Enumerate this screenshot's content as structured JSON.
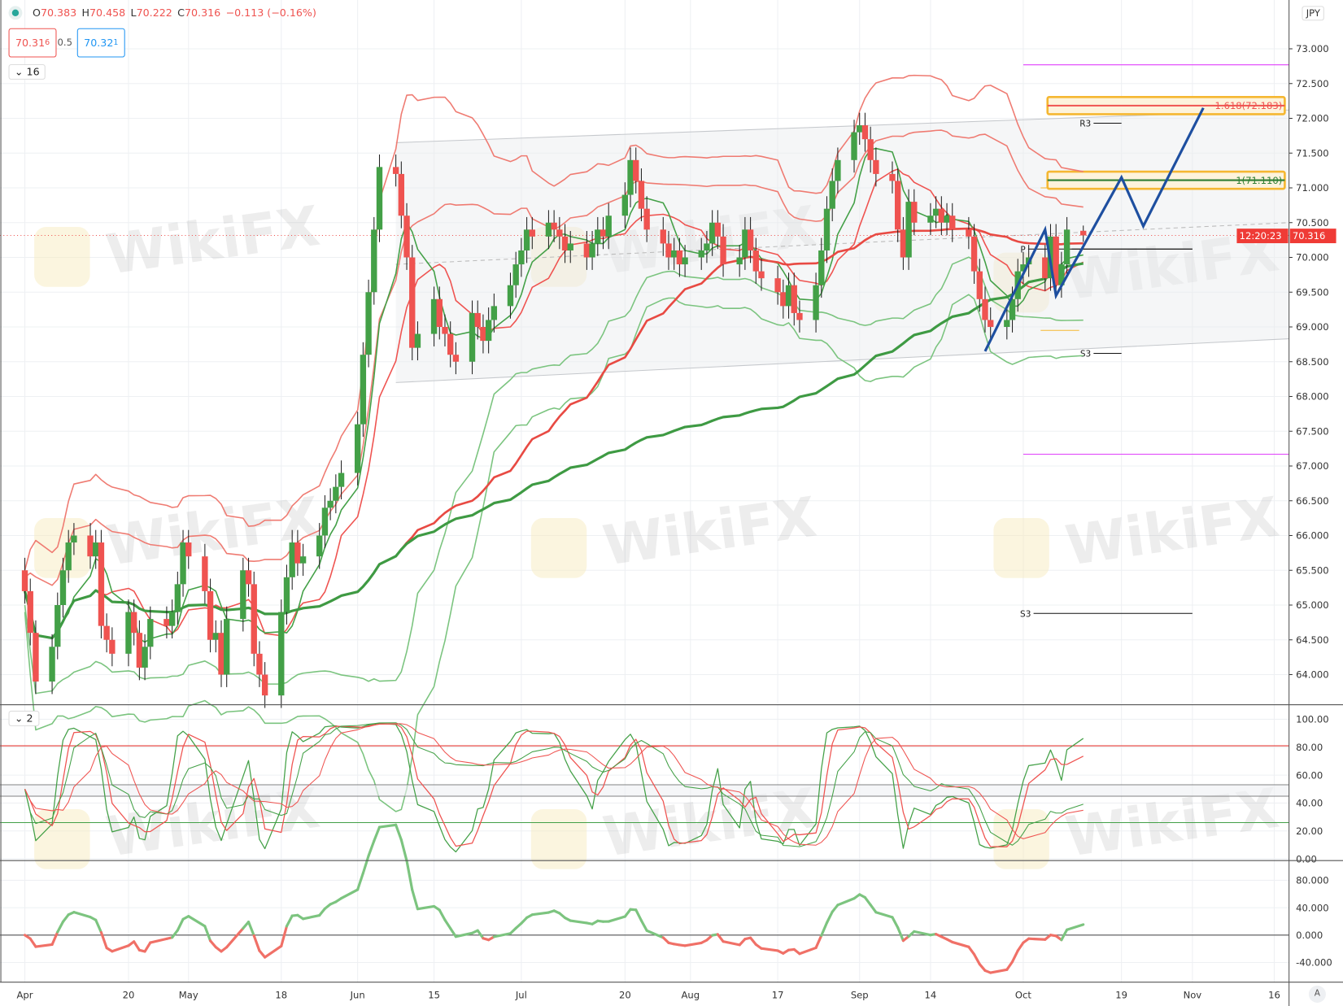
{
  "legend": {
    "open_label": "O",
    "open": "70.383",
    "high_label": "H",
    "high": "70.458",
    "low_label": "L",
    "low": "70.222",
    "close_label": "C",
    "close": "70.316",
    "change": "−0.113 (−0.16%)"
  },
  "bid": {
    "value": "70.31",
    "sup": "6"
  },
  "spread": "0.5",
  "ask": {
    "value": "70.32",
    "sup": "1"
  },
  "pane_chips": {
    "main": "16",
    "osc": "2"
  },
  "currency": "JPY",
  "price_label": "70.316",
  "countdown": "12:20:23",
  "axis_mode": "A",
  "watermark": "WikiFX",
  "colors": {
    "up": "#43a047",
    "down": "#ef5350",
    "projection": "#1e4fa0",
    "fib_box": "#f5b731",
    "pivot_magenta": "#e040fb"
  },
  "chart_data": [
    {
      "type": "candlestick",
      "price_ticks": [
        "73.000",
        "72.500",
        "72.000",
        "71.500",
        "71.000",
        "70.500",
        "70.000",
        "69.500",
        "69.000",
        "68.500",
        "68.000",
        "67.500",
        "67.000",
        "66.500",
        "66.000",
        "65.500",
        "65.000",
        "64.500",
        "64.000"
      ],
      "time_ticks": [
        [
          "04-01",
          "Apr"
        ],
        [
          "04-20",
          "20"
        ],
        [
          "05-01",
          "May"
        ],
        [
          "05-18",
          "18"
        ],
        [
          "06-01",
          "Jun"
        ],
        [
          "06-15",
          "15"
        ],
        [
          "07-01",
          "Jul"
        ],
        [
          "07-20",
          "20"
        ],
        [
          "08-01",
          "Aug"
        ],
        [
          "08-17",
          "17"
        ],
        [
          "09-01",
          "Sep"
        ],
        [
          "09-14",
          "14"
        ],
        [
          "10-01",
          "Oct"
        ],
        [
          "10-19",
          "19"
        ],
        [
          "11-01",
          "Nov"
        ],
        [
          "11-16",
          "16"
        ]
      ],
      "ylim": [
        63.6,
        73.5
      ],
      "closes": [
        [
          "04-01",
          65.2
        ],
        [
          "04-02",
          64.6
        ],
        [
          "04-03",
          63.9
        ],
        [
          "04-06",
          64.4
        ],
        [
          "04-07",
          65.0
        ],
        [
          "04-08",
          65.5
        ],
        [
          "04-09",
          65.9
        ],
        [
          "04-10",
          66.0
        ],
        [
          "04-13",
          65.7
        ],
        [
          "04-14",
          65.9
        ],
        [
          "04-15",
          64.7
        ],
        [
          "04-16",
          64.5
        ],
        [
          "04-17",
          64.3
        ],
        [
          "04-20",
          64.9
        ],
        [
          "04-21",
          64.6
        ],
        [
          "04-22",
          64.1
        ],
        [
          "04-23",
          64.4
        ],
        [
          "04-24",
          64.8
        ],
        [
          "04-27",
          64.7
        ],
        [
          "04-28",
          64.9
        ],
        [
          "04-29",
          65.3
        ],
        [
          "04-30",
          65.9
        ],
        [
          "05-01",
          65.7
        ],
        [
          "05-04",
          65.2
        ],
        [
          "05-05",
          64.5
        ],
        [
          "05-06",
          64.6
        ],
        [
          "05-07",
          64.0
        ],
        [
          "05-08",
          64.8
        ],
        [
          "05-11",
          65.5
        ],
        [
          "05-12",
          65.3
        ],
        [
          "05-13",
          64.3
        ],
        [
          "05-14",
          64.0
        ],
        [
          "05-15",
          63.7
        ],
        [
          "05-18",
          64.9
        ],
        [
          "05-19",
          65.4
        ],
        [
          "05-20",
          65.9
        ],
        [
          "05-21",
          65.6
        ],
        [
          "05-22",
          65.7
        ],
        [
          "05-25",
          66.0
        ],
        [
          "05-26",
          66.4
        ],
        [
          "05-27",
          66.5
        ],
        [
          "05-28",
          66.7
        ],
        [
          "05-29",
          66.9
        ],
        [
          "06-01",
          67.6
        ],
        [
          "06-02",
          68.6
        ],
        [
          "06-03",
          69.5
        ],
        [
          "06-04",
          70.4
        ],
        [
          "06-05",
          71.3
        ],
        [
          "06-08",
          71.2
        ],
        [
          "06-09",
          70.6
        ],
        [
          "06-10",
          70.0
        ],
        [
          "06-11",
          68.7
        ],
        [
          "06-12",
          68.9
        ],
        [
          "06-15",
          69.4
        ],
        [
          "06-16",
          69.0
        ],
        [
          "06-17",
          68.9
        ],
        [
          "06-18",
          68.6
        ],
        [
          "06-19",
          68.5
        ],
        [
          "06-22",
          69.2
        ],
        [
          "06-23",
          69.0
        ],
        [
          "06-24",
          68.8
        ],
        [
          "06-25",
          69.1
        ],
        [
          "06-26",
          69.3
        ],
        [
          "06-29",
          69.6
        ],
        [
          "06-30",
          69.9
        ],
        [
          "07-01",
          70.1
        ],
        [
          "07-02",
          70.4
        ],
        [
          "07-03",
          70.3
        ],
        [
          "07-06",
          70.5
        ],
        [
          "07-07",
          70.4
        ],
        [
          "07-08",
          70.3
        ],
        [
          "07-09",
          70.1
        ],
        [
          "07-10",
          70.2
        ],
        [
          "07-13",
          70.0
        ],
        [
          "07-14",
          70.2
        ],
        [
          "07-15",
          70.4
        ],
        [
          "07-16",
          70.3
        ],
        [
          "07-17",
          70.6
        ],
        [
          "07-20",
          70.9
        ],
        [
          "07-21",
          71.4
        ],
        [
          "07-22",
          71.1
        ],
        [
          "07-23",
          70.7
        ],
        [
          "07-24",
          70.4
        ],
        [
          "07-27",
          70.2
        ],
        [
          "07-28",
          70.0
        ],
        [
          "07-29",
          70.1
        ],
        [
          "07-30",
          69.9
        ],
        [
          "07-31",
          70.0
        ],
        [
          "08-03",
          70.1
        ],
        [
          "08-04",
          70.2
        ],
        [
          "08-05",
          70.5
        ],
        [
          "08-06",
          70.3
        ],
        [
          "08-07",
          69.9
        ],
        [
          "08-10",
          70.0
        ],
        [
          "08-11",
          70.4
        ],
        [
          "08-12",
          70.1
        ],
        [
          "08-13",
          69.8
        ],
        [
          "08-14",
          69.7
        ],
        [
          "08-17",
          69.5
        ],
        [
          "08-18",
          69.3
        ],
        [
          "08-19",
          69.6
        ],
        [
          "08-20",
          69.2
        ],
        [
          "08-21",
          69.1
        ],
        [
          "08-24",
          69.6
        ],
        [
          "08-25",
          70.1
        ],
        [
          "08-26",
          70.7
        ],
        [
          "08-27",
          71.1
        ],
        [
          "08-28",
          71.4
        ],
        [
          "08-31",
          71.8
        ],
        [
          "09-01",
          71.9
        ],
        [
          "09-02",
          71.7
        ],
        [
          "09-03",
          71.4
        ],
        [
          "09-04",
          71.2
        ],
        [
          "09-07",
          71.1
        ],
        [
          "09-08",
          70.4
        ],
        [
          "09-09",
          70.0
        ],
        [
          "09-10",
          70.8
        ],
        [
          "09-11",
          70.5
        ],
        [
          "09-14",
          70.6
        ],
        [
          "09-15",
          70.7
        ],
        [
          "09-16",
          70.5
        ],
        [
          "09-17",
          70.6
        ],
        [
          "09-18",
          70.4
        ],
        [
          "09-21",
          70.3
        ],
        [
          "09-22",
          69.8
        ],
        [
          "09-23",
          69.4
        ],
        [
          "09-24",
          69.1
        ],
        [
          "09-25",
          69.0
        ],
        [
          "09-28",
          69.1
        ],
        [
          "09-29",
          69.4
        ],
        [
          "09-30",
          69.8
        ],
        [
          "10-01",
          69.9
        ],
        [
          "10-02",
          70.0
        ],
        [
          "10-05",
          69.7
        ],
        [
          "10-06",
          70.3
        ],
        [
          "10-07",
          69.6
        ],
        [
          "10-08",
          69.9
        ],
        [
          "10-09",
          70.4
        ],
        [
          "10-12",
          70.316
        ]
      ],
      "last_candle": {
        "date": "10-12",
        "open": 70.383,
        "high": 70.458,
        "low": 70.222,
        "close": 70.316
      },
      "fib_levels": [
        {
          "label": "1.618(72.183)",
          "price": 72.183,
          "color": "#ef5350"
        },
        {
          "label": "1(71.110)",
          "price": 71.11,
          "color": "#2e7d32"
        }
      ],
      "pivots": [
        {
          "label": "R3",
          "price": 71.93,
          "from": "10-12",
          "to": "10-19"
        },
        {
          "label": "P",
          "price": 70.12,
          "from": "09-30",
          "to": "11-01"
        },
        {
          "label": "P",
          "price": 70.12,
          "from": "10-08",
          "to": "11-01"
        },
        {
          "label": "S3",
          "price": 68.62,
          "from": "10-12",
          "to": "10-19"
        },
        {
          "label": "S3",
          "price": 64.88,
          "from": "10-01",
          "to": "11-01"
        }
      ],
      "magenta_levels": [
        72.77,
        67.17
      ],
      "channel": {
        "top": [
          [
            "06-08",
            71.65
          ],
          [
            "11-19",
            72.12
          ]
        ],
        "bottom": [
          [
            "06-08",
            68.2
          ],
          [
            "11-19",
            68.83
          ]
        ],
        "mid": [
          [
            "06-08",
            69.9
          ],
          [
            "11-19",
            70.5
          ]
        ]
      },
      "projection": [
        [
          "09-24",
          68.65
        ],
        [
          "10-05",
          70.4
        ],
        [
          "10-07",
          69.45
        ],
        [
          "10-19",
          71.15
        ],
        [
          "10-23",
          70.45
        ],
        [
          "11-03",
          72.15
        ]
      ]
    },
    {
      "type": "line",
      "name": "",
      "yticks": [
        "100.00",
        "80.00",
        "60.00",
        "40.00",
        "20.00",
        "0.00"
      ],
      "ylim": [
        0,
        100
      ],
      "levels": [
        {
          "value": 81,
          "color": "#e53935"
        },
        {
          "value": 53,
          "color": "#555"
        },
        {
          "value": 45,
          "color": "#555"
        },
        {
          "value": 26,
          "color": "#43a047"
        }
      ]
    },
    {
      "type": "line",
      "name": "",
      "yticks": [
        "80.000",
        "40.000",
        "0.000",
        "-40.000"
      ],
      "ylim": [
        -60,
        100
      ]
    }
  ]
}
